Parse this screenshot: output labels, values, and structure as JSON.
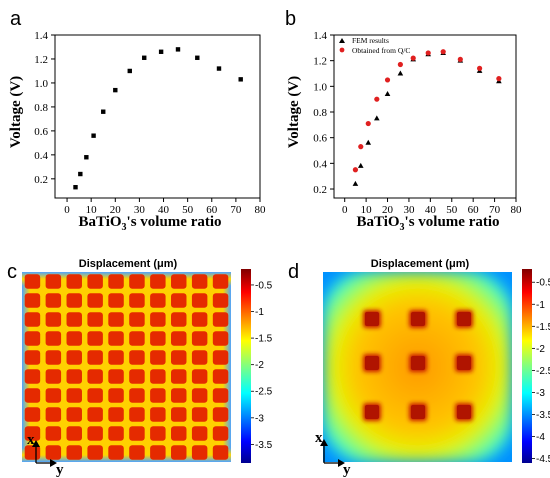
{
  "panel_labels": {
    "a": "a",
    "b": "b",
    "c": "c",
    "d": "d"
  },
  "colors": {
    "fem": "#000000",
    "qc": "#e02020",
    "jet_low": "#00008f",
    "jet_high": "#800000"
  },
  "chart_data": [
    {
      "panel": "a",
      "type": "scatter",
      "xlabel_main": "BaTiO",
      "xlabel_sub": "3",
      "xlabel_rest": "'s volume ratio",
      "ylabel": "Voltage (V)",
      "xlim": [
        -5,
        80
      ],
      "ylim": [
        0.04,
        1.4
      ],
      "xticks": [
        0,
        10,
        20,
        30,
        40,
        50,
        60,
        70,
        80
      ],
      "yticks": [
        0.2,
        0.4,
        0.6,
        0.8,
        1.0,
        1.2,
        1.4
      ],
      "ytick_labels": [
        "0.2",
        "0.4",
        "0.6",
        "0.8",
        "1.0",
        "1.2",
        "1.4"
      ],
      "series": [
        {
          "marker": "square",
          "x": [
            3.5,
            5.5,
            8,
            11,
            15,
            20,
            26,
            32,
            39,
            46,
            54,
            63,
            72
          ],
          "y": [
            0.13,
            0.24,
            0.38,
            0.56,
            0.76,
            0.94,
            1.1,
            1.21,
            1.26,
            1.28,
            1.21,
            1.12,
            1.03
          ]
        }
      ]
    },
    {
      "panel": "b",
      "type": "scatter",
      "xlabel_main": "BaTiO",
      "xlabel_sub": "3",
      "xlabel_rest": "'s volume ratio",
      "ylabel": "Voltage (V)",
      "xlim": [
        -5,
        80
      ],
      "ylim": [
        0.13,
        1.4
      ],
      "xticks": [
        0,
        10,
        20,
        30,
        40,
        50,
        60,
        70,
        80
      ],
      "yticks": [
        0.2,
        0.4,
        0.6,
        0.8,
        1.0,
        1.2,
        1.4
      ],
      "ytick_labels": [
        "0.2",
        "0.4",
        "0.6",
        "0.8",
        "1.0",
        "1.2",
        "1.4"
      ],
      "legend_position": "top-left",
      "series": [
        {
          "name": "FEM results",
          "marker": "triangle",
          "x": [
            5,
            7.5,
            11,
            15,
            20,
            26,
            32,
            39,
            46,
            54,
            63,
            72
          ],
          "y": [
            0.24,
            0.38,
            0.56,
            0.75,
            0.94,
            1.1,
            1.21,
            1.25,
            1.26,
            1.2,
            1.12,
            1.04
          ]
        },
        {
          "name": "Obtained from Q/C",
          "marker": "circle",
          "x": [
            5,
            7.5,
            11,
            15,
            20,
            26,
            32,
            39,
            46,
            54,
            63,
            72
          ],
          "y": [
            0.35,
            0.53,
            0.71,
            0.9,
            1.05,
            1.17,
            1.22,
            1.26,
            1.27,
            1.21,
            1.14,
            1.06
          ]
        }
      ]
    },
    {
      "panel": "c",
      "type": "heatmap",
      "title": "Displacement (μm)",
      "grid": [
        10,
        10
      ],
      "colorbar_ticks": [
        -0.5,
        -1,
        -1.5,
        -2,
        -2.5,
        -3,
        -3.5
      ],
      "colorbar_labels": [
        "-0.5",
        "-1",
        "-1.5",
        "-2",
        "-2.5",
        "-3",
        "-3.5"
      ],
      "colorbar_range": [
        -3.85,
        -0.2
      ],
      "axis_x": "x",
      "axis_y": "y"
    },
    {
      "panel": "d",
      "type": "heatmap",
      "title": "Displacement (μm)",
      "grid": [
        3,
        3
      ],
      "colorbar_ticks": [
        -0.5,
        -1,
        -1.5,
        -2,
        -2.5,
        -3,
        -3.5,
        -4,
        -4.5
      ],
      "colorbar_labels": [
        "-0.5",
        "-1",
        "-1.5",
        "-2",
        "-2.5",
        "-3",
        "-3.5",
        "-4",
        "-4.5"
      ],
      "colorbar_range": [
        -4.6,
        -0.2
      ],
      "axis_x": "x",
      "axis_y": "y"
    }
  ]
}
